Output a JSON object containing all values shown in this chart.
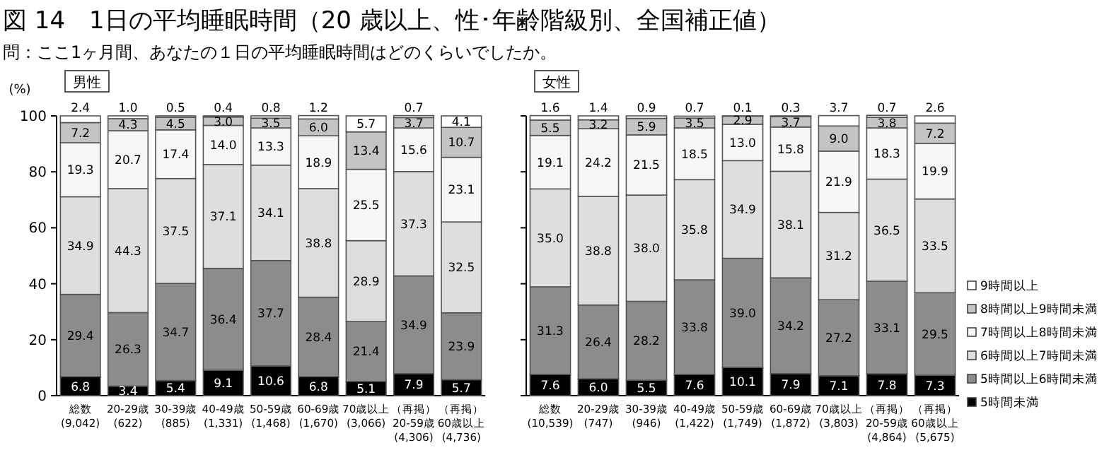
{
  "chart_data": [
    {
      "type": "bar",
      "stacked": true,
      "title": "男性",
      "ylabel": "(%)",
      "annotations": [
        "図 14　1日の平均睡眠時間（20 歳以上、性･年齢階級別、全国補正値）",
        "問：ここ1ヶ月間、あなたの１日の平均睡眠時間はどのくらいでしたか。"
      ],
      "categories": [
        "総数\n(9,042)",
        "20-29歳\n(622)",
        "30-39歳\n(885)",
        "40-49歳\n(1,331)",
        "50-59歳\n(1,468)",
        "60-69歳\n(1,670)",
        "70歳以上\n(3,066)",
        "（再掲）\n20-59歳\n(4,306)",
        "（再掲）\n60歳以上\n(4,736)"
      ],
      "ylim": [
        0,
        100
      ],
      "yticks": [
        0,
        20,
        40,
        60,
        80,
        100
      ],
      "legend": false,
      "series": [
        {
          "color": "#000000",
          "values": [
            6.8,
            3.4,
            5.4,
            9.1,
            10.6,
            6.8,
            5.1,
            7.9,
            5.7
          ],
          "value_labels": [
            "6.8",
            "3.4",
            "5.4",
            "9.1",
            "10.6",
            "6.8",
            "5.1",
            "7.9",
            "5.7"
          ]
        },
        {
          "color": "#8c8c8c",
          "values": [
            29.4,
            26.3,
            34.7,
            36.4,
            37.7,
            28.4,
            21.4,
            34.9,
            23.9
          ],
          "value_labels": [
            "29.4",
            "26.3",
            "34.7",
            "36.4",
            "37.7",
            "28.4",
            "21.4",
            "34.9",
            "23.9"
          ]
        },
        {
          "color": "#dedede",
          "values": [
            34.9,
            44.3,
            37.5,
            37.1,
            34.1,
            38.8,
            28.9,
            37.3,
            32.5
          ],
          "value_labels": [
            "34.9",
            "44.3",
            "37.5",
            "37.1",
            "34.1",
            "38.8",
            "28.9",
            "37.3",
            "32.5"
          ]
        },
        {
          "color": "#f6f6f6",
          "values": [
            19.3,
            20.7,
            17.4,
            14.0,
            13.3,
            18.9,
            25.5,
            15.6,
            23.1
          ],
          "value_labels": [
            "19.3",
            "20.7",
            "17.4",
            "14.0",
            "13.3",
            "18.9",
            "25.5",
            "15.6",
            "23.1"
          ]
        },
        {
          "color": "#c4c4c4",
          "values": [
            7.2,
            4.3,
            4.5,
            3.0,
            3.5,
            6.0,
            13.4,
            3.7,
            10.7
          ],
          "value_labels": [
            "7.2",
            "4.3",
            "4.5",
            "3.0",
            "3.5",
            "6.0",
            "13.4",
            "3.7",
            "10.7"
          ]
        },
        {
          "color": "#ffffff",
          "values": [
            2.4,
            1.0,
            0.5,
            0.4,
            0.8,
            1.2,
            5.7,
            0.7,
            4.1
          ],
          "value_labels": [
            "2.4",
            "1.0",
            "0.5",
            "0.4",
            "0.8",
            "1.2",
            "5.7",
            "0.7",
            "4.1"
          ]
        }
      ]
    },
    {
      "type": "bar",
      "stacked": true,
      "title": "女性",
      "categories": [
        "総数\n(10,539)",
        "20-29歳\n(747)",
        "30-39歳\n(946)",
        "40-49歳\n(1,422)",
        "50-59歳\n(1,749)",
        "60-69歳\n(1,872)",
        "70歳以上\n(3,803)",
        "（再掲）\n20-59歳\n(4,864)",
        "（再掲）\n60歳以上\n(5,675)"
      ],
      "ylim": [
        0,
        100
      ],
      "yticks": [
        0,
        20,
        40,
        60,
        80,
        100
      ],
      "tick_labels": "x",
      "legend": "right",
      "series": [
        {
          "name": "5時間未満",
          "color": "#000000",
          "values": [
            7.6,
            6.0,
            5.5,
            7.6,
            10.1,
            7.9,
            7.1,
            7.8,
            7.3
          ],
          "value_labels": [
            "7.6",
            "6.0",
            "5.5",
            "7.6",
            "10.1",
            "7.9",
            "7.1",
            "7.8",
            "7.3"
          ]
        },
        {
          "name": "5時間以上6時間未満",
          "color": "#8c8c8c",
          "values": [
            31.3,
            26.4,
            28.2,
            33.8,
            39.0,
            34.2,
            27.2,
            33.1,
            29.5
          ],
          "value_labels": [
            "31.3",
            "26.4",
            "28.2",
            "33.8",
            "39.0",
            "34.2",
            "27.2",
            "33.1",
            "29.5"
          ]
        },
        {
          "name": "6時間以上7時間未満",
          "color": "#dedede",
          "values": [
            35.0,
            38.8,
            38.0,
            35.8,
            34.9,
            38.1,
            31.2,
            36.5,
            33.5
          ],
          "value_labels": [
            "35.0",
            "38.8",
            "38.0",
            "35.8",
            "34.9",
            "38.1",
            "31.2",
            "36.5",
            "33.5"
          ]
        },
        {
          "name": "7時間以上8時間未満",
          "color": "#f6f6f6",
          "values": [
            19.1,
            24.2,
            21.5,
            18.5,
            13.0,
            15.8,
            21.9,
            18.3,
            19.9
          ],
          "value_labels": [
            "19.1",
            "24.2",
            "21.5",
            "18.5",
            "13.0",
            "15.8",
            "21.9",
            "18.3",
            "19.9"
          ]
        },
        {
          "name": "8時間以上9時間未満",
          "color": "#c4c4c4",
          "values": [
            5.5,
            3.2,
            5.9,
            3.5,
            2.9,
            3.7,
            9.0,
            3.8,
            7.2
          ],
          "value_labels": [
            "5.5",
            "3.2",
            "5.9",
            "3.5",
            "2.9",
            "3.7",
            "9.0",
            "3.8",
            "7.2"
          ]
        },
        {
          "name": "9時間以上",
          "color": "#ffffff",
          "values": [
            1.6,
            1.4,
            0.9,
            0.7,
            0.1,
            0.3,
            3.7,
            0.7,
            2.6
          ],
          "value_labels": [
            "1.6",
            "1.4",
            "0.9",
            "0.7",
            "0.1",
            "0.3",
            "3.7",
            "0.7",
            "2.6"
          ]
        }
      ]
    }
  ]
}
